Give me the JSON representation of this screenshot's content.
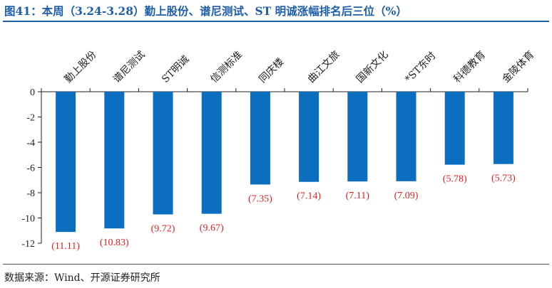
{
  "title": "图41：本周（3.24-3.28）勤上股份、谱尼测试、ST 明诚涨幅排名后三位（%）",
  "source": "数据来源：Wind、开源证券研究所",
  "colors": {
    "bar": "#0b6ebf",
    "label": "#e02020",
    "title": "#1f5ea8",
    "axis": "#222222"
  },
  "chart_data": {
    "type": "bar",
    "categories": [
      "勤上股份",
      "谱尼测试",
      "ST明诚",
      "信测标准",
      "同庆楼",
      "曲江文旅",
      "国新文化",
      "*ST东时",
      "科德教育",
      "金陵体育"
    ],
    "values": [
      -11.11,
      -10.83,
      -9.72,
      -9.67,
      -7.35,
      -7.14,
      -7.11,
      -7.09,
      -5.78,
      -5.73
    ],
    "data_labels": [
      "(11.11)",
      "(10.83)",
      "(9.72)",
      "(9.67)",
      "(7.35)",
      "(7.14)",
      "(7.11)",
      "(7.09)",
      "(5.78)",
      "(5.73)"
    ],
    "y_ticks": [
      "0",
      "-2",
      "-4",
      "-6",
      "-8",
      "-10",
      "-12"
    ],
    "ylim": [
      -12,
      0
    ],
    "xlabel": "",
    "ylabel": "",
    "grid": false,
    "legend": "none"
  }
}
